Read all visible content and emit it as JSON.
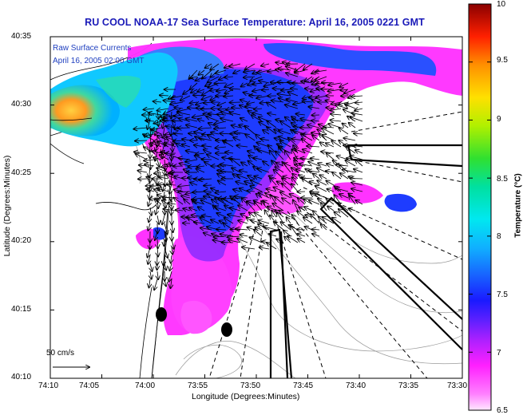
{
  "title": "RU COOL  NOAA-17  Sea Surface Temperature:  April 16, 2005 0221 GMT",
  "overlay": {
    "line1": "Raw Surface Currents",
    "line2": "April 16, 2005 02:00 GMT",
    "scale_label": "50 cm/s"
  },
  "axes": {
    "xlabel": "Longitude (Degrees:Minutes)",
    "ylabel": "Latitude (Degrees:Minutes)",
    "xticks": [
      "74:10",
      "74:05",
      "74:00",
      "73:55",
      "73:50",
      "73:45",
      "73:40",
      "73:35",
      "73:30"
    ],
    "yticks": [
      "40:35",
      "40:30",
      "40:25",
      "40:20",
      "40:15",
      "40:10"
    ]
  },
  "colorbar": {
    "label": "Temperature (°C)",
    "ticks": [
      "10",
      "9.5",
      "9",
      "8.5",
      "8",
      "7.5",
      "7",
      "6.5"
    ],
    "range": [
      6.5,
      10
    ]
  },
  "colors": {
    "title": "#1a1ab8",
    "overlay_text": "#1f3fbf",
    "magenta": "#ff33ff",
    "blue": "#1e3cff"
  }
}
